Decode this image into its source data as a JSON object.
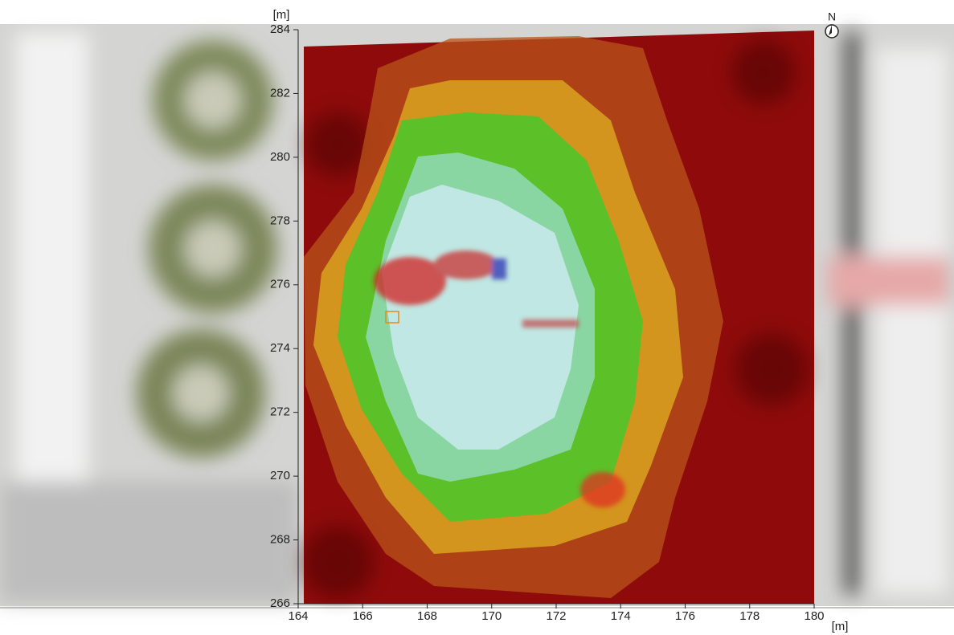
{
  "chart_data": {
    "type": "contour",
    "x_label": "[m]",
    "y_label": "[m]",
    "xlim": [
      164,
      180
    ],
    "xticks": [
      164,
      166,
      168,
      170,
      172,
      174,
      176,
      178,
      180
    ],
    "ylim": [
      266,
      284
    ],
    "yticks": [
      266,
      268,
      270,
      272,
      274,
      276,
      278,
      280,
      282,
      284
    ]
  },
  "compass": {
    "label": "N"
  }
}
